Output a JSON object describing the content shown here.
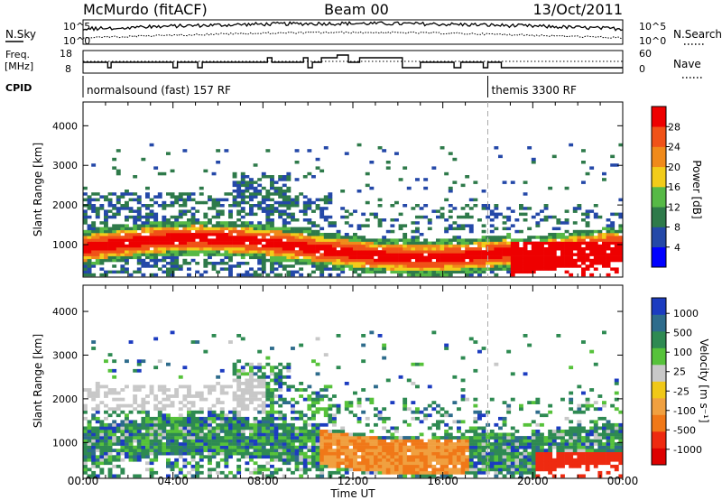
{
  "header": {
    "station": "McMurdo (fitACF)",
    "beam": "Beam 00",
    "date": "13/Oct/2011"
  },
  "meta_labels": {
    "nsky": "N.Sky",
    "nsearch": "N.Search",
    "freq1": "Freq.",
    "freq2": "[MHz]",
    "nave": "Nave",
    "cpid": "CPID",
    "noise_ticks_left": [
      "10^5",
      "10^0"
    ],
    "noise_ticks_right": [
      "10^5",
      "10^0"
    ],
    "freq_ticks": [
      "18",
      "8"
    ],
    "nave_ticks": [
      "60",
      "0"
    ]
  },
  "cpid_segments": [
    {
      "start_hour": 0,
      "end_hour": 18,
      "label": "normalsound (fast) 157 RF"
    },
    {
      "start_hour": 18,
      "end_hour": 24,
      "label": "themis 3300 RF"
    }
  ],
  "colors": {
    "power_scale": [
      "#0000ff",
      "#2448a8",
      "#2e7a4a",
      "#56b946",
      "#f2cc1a",
      "#f08a1a",
      "#f05218",
      "#ee0000"
    ],
    "velocity_scale": [
      "#1c3cc0",
      "#2e6c8c",
      "#2e8a52",
      "#56c23a",
      "#c8c8c8",
      "#f0c818",
      "#f0a040",
      "#f07818",
      "#ee2a10",
      "#dd0000"
    ]
  },
  "chart_data": [
    {
      "type": "heatmap",
      "name": "power",
      "ylabel": "Slant Range [km]",
      "yticks": [
        1000,
        2000,
        3000,
        4000
      ],
      "ylim": [
        180,
        4600
      ],
      "xlim_hours": [
        0,
        24
      ],
      "colorbar": {
        "label": "Power [dB]",
        "ticks": [
          "4",
          "8",
          "12",
          "16",
          "20",
          "24",
          "28"
        ]
      }
    },
    {
      "type": "heatmap",
      "name": "velocity",
      "ylabel": "Slant Range [km]",
      "yticks": [
        1000,
        2000,
        3000,
        4000
      ],
      "ylim": [
        180,
        4600
      ],
      "xlim_hours": [
        0,
        24
      ],
      "xticks": [
        "00:00",
        "04:00",
        "08:00",
        "12:00",
        "16:00",
        "20:00",
        "00:00"
      ],
      "xlabel": "Time UT",
      "colorbar": {
        "label": "Velocity [m s⁻¹]",
        "ticks": [
          "1000",
          "500",
          "100",
          "25",
          "-25",
          "-100",
          "-500",
          "-1000"
        ]
      }
    }
  ]
}
